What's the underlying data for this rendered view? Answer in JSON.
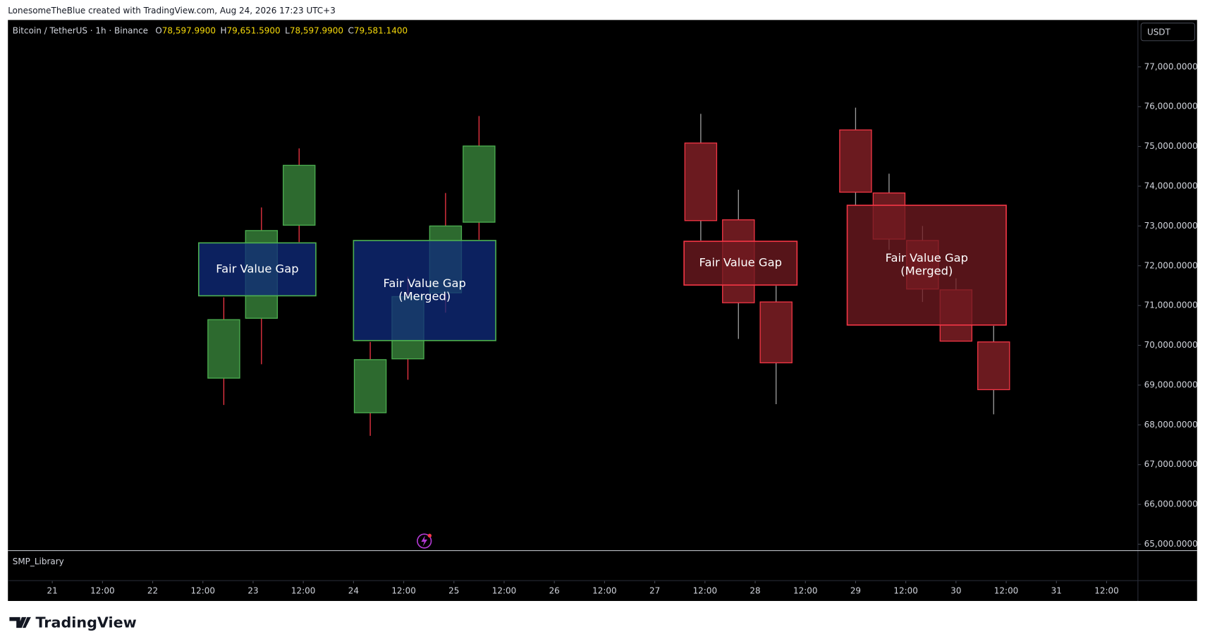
{
  "header": {
    "attribution": "LonesomeTheBlue created with TradingView.com, Aug 24, 2026 17:23 UTC+3"
  },
  "chart_data": {
    "type": "candlestick",
    "title": "Bitcoin / TetherUS · 1h · Binance",
    "legend_values": [
      {
        "label": "O",
        "value": "78,597.9900"
      },
      {
        "label": "H",
        "value": "79,651.5900"
      },
      {
        "label": "L",
        "value": "78,597.9900"
      },
      {
        "label": "C",
        "value": "79,581.1400"
      }
    ],
    "currency": "USDT",
    "indicator": "SMP_Library",
    "x": [
      41,
      50,
      59,
      76,
      85,
      94,
      102,
      155,
      164,
      173,
      192,
      200,
      208,
      216,
      225
    ],
    "open": [
      69175,
      70680,
      73020,
      68305,
      69660,
      71320,
      73095,
      75085,
      73155,
      71090,
      75415,
      73830,
      72635,
      71395,
      70085
    ],
    "high": [
      71205,
      73465,
      74950,
      70085,
      71725,
      73830,
      75765,
      75820,
      73910,
      71495,
      75975,
      74315,
      73000,
      71685,
      70490
    ],
    "low": [
      68500,
      69525,
      72595,
      67725,
      69135,
      70820,
      72655,
      72635,
      70160,
      68520,
      73520,
      72400,
      71090,
      70105,
      68265
    ],
    "close": [
      70645,
      72885,
      74525,
      69640,
      71225,
      73000,
      75010,
      73135,
      71070,
      69560,
      73850,
      72670,
      71415,
      70105,
      68885
    ],
    "up_color": "#2d6a2f",
    "up_border": "#4caf50",
    "up_wick_color": "#f23645",
    "down_color": "#6b1a1f",
    "down_border": "#f23645",
    "down_wick_color": "#9e9e9e",
    "xlim": [
      -10.6,
      259.3
    ],
    "xticks": [
      {
        "value": 0,
        "label": "21"
      },
      {
        "value": 12,
        "label": "12:00"
      },
      {
        "value": 24,
        "label": "22"
      },
      {
        "value": 36,
        "label": "12:00"
      },
      {
        "value": 48,
        "label": "23"
      },
      {
        "value": 60,
        "label": "12:00"
      },
      {
        "value": 72,
        "label": "24"
      },
      {
        "value": 84,
        "label": "12:00"
      },
      {
        "value": 96,
        "label": "25"
      },
      {
        "value": 108,
        "label": "12:00"
      },
      {
        "value": 120,
        "label": "26"
      },
      {
        "value": 132,
        "label": "12:00"
      },
      {
        "value": 144,
        "label": "27"
      },
      {
        "value": 156,
        "label": "12:00"
      },
      {
        "value": 168,
        "label": "28"
      },
      {
        "value": 180,
        "label": "12:00"
      },
      {
        "value": 192,
        "label": "29"
      },
      {
        "value": 204,
        "label": "12:00"
      },
      {
        "value": 216,
        "label": "30"
      },
      {
        "value": 228,
        "label": "12:00"
      },
      {
        "value": 240,
        "label": "31"
      },
      {
        "value": 252,
        "label": "12:00"
      }
    ],
    "ylim": [
      64848,
      78179
    ],
    "yticks": [
      {
        "value": 65000,
        "label": "65,000.0000"
      },
      {
        "value": 66000,
        "label": "66,000.0000"
      },
      {
        "value": 67000,
        "label": "67,000.0000"
      },
      {
        "value": 68000,
        "label": "68,000.0000"
      },
      {
        "value": 69000,
        "label": "69,000.0000"
      },
      {
        "value": 70000,
        "label": "70,000.0000"
      },
      {
        "value": 71000,
        "label": "71,000.0000"
      },
      {
        "value": 72000,
        "label": "72,000.0000"
      },
      {
        "value": 73000,
        "label": "73,000.0000"
      },
      {
        "value": 74000,
        "label": "74,000.0000"
      },
      {
        "value": 75000,
        "label": "75,000.0000"
      },
      {
        "value": 76000,
        "label": "76,000.0000"
      },
      {
        "value": 77000,
        "label": "77,000.0000"
      }
    ],
    "boxes": [
      {
        "x": [
          35,
          63
        ],
        "y": [
          71245,
          72575
        ],
        "label": [
          "Fair Value Gap"
        ],
        "fill": "#0f2a7a",
        "border": "#4caf50"
      },
      {
        "x": [
          72,
          106
        ],
        "y": [
          70120,
          72635
        ],
        "label": [
          "Fair Value Gap",
          "(Merged)"
        ],
        "fill": "#0f2a7a",
        "border": "#4caf50"
      },
      {
        "x": [
          151,
          178
        ],
        "y": [
          71515,
          72615
        ],
        "label": [
          "Fair Value Gap"
        ],
        "fill": "#6e1a20",
        "border": "#f23645"
      },
      {
        "x": [
          190,
          228
        ],
        "y": [
          70510,
          73520
        ],
        "label": [
          "Fair Value Gap",
          "(Merged)"
        ],
        "fill": "#6e1a20",
        "border": "#f23645"
      }
    ]
  },
  "footer": {
    "logo": "TradingView"
  }
}
